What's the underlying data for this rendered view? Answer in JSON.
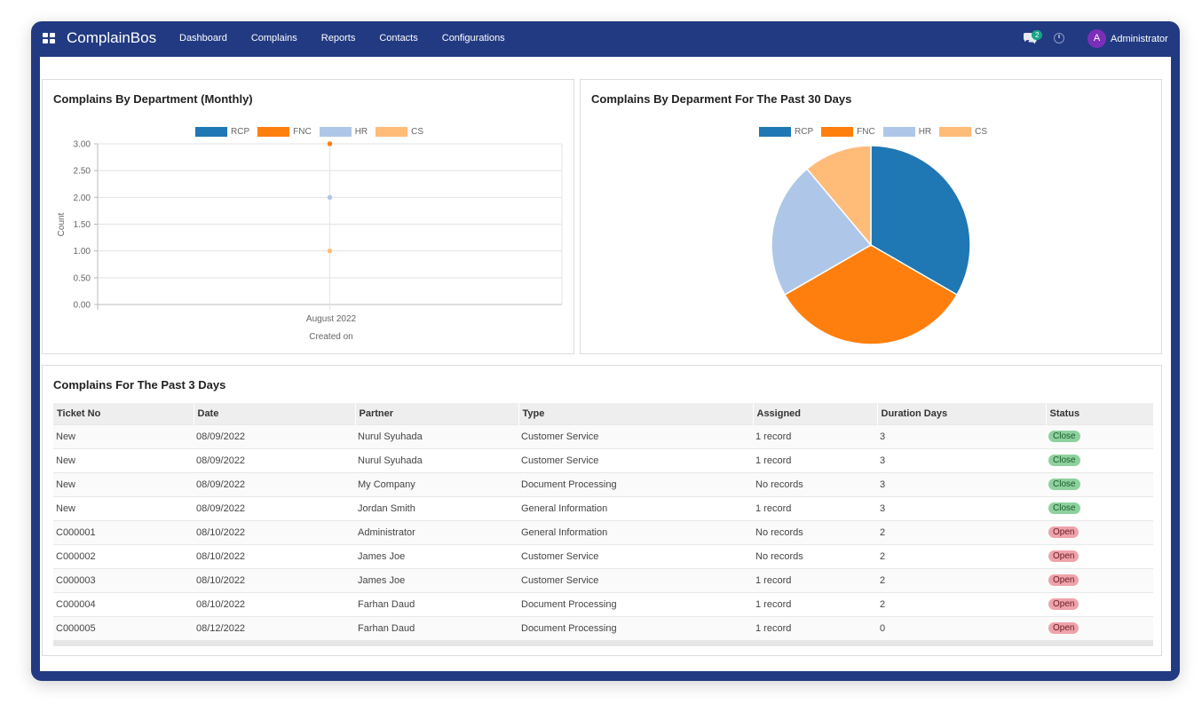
{
  "nav": {
    "brand": "ComplainBos",
    "menu": [
      "Dashboard",
      "Complains",
      "Reports",
      "Contacts",
      "Configurations"
    ],
    "chat_count": "2",
    "avatar_letter": "A",
    "user_name": "Administrator"
  },
  "panels": {
    "monthly_title": "Complains By Department (Monthly)",
    "pie_title": "Complains By Deparment For The Past 30 Days",
    "table_title": "Complains For The Past 3 Days"
  },
  "colors": {
    "RCP": "#1f77b4",
    "FNC": "#ff7f0e",
    "HR": "#aec7e8",
    "CS": "#ffbb78"
  },
  "chart_data": [
    {
      "type": "line",
      "title": "Complains By Department (Monthly)",
      "xlabel": "Created on",
      "ylabel": "Count",
      "categories": [
        "August 2022"
      ],
      "ylim": [
        0,
        3
      ],
      "yticks": [
        "3.00",
        "2.50",
        "2.00",
        "1.50",
        "1.00",
        "0.50",
        "0.00"
      ],
      "series": [
        {
          "name": "RCP",
          "values": [
            3
          ]
        },
        {
          "name": "FNC",
          "values": [
            3
          ]
        },
        {
          "name": "HR",
          "values": [
            2
          ]
        },
        {
          "name": "CS",
          "values": [
            1
          ]
        }
      ],
      "legend": "top"
    },
    {
      "type": "pie",
      "title": "Complains By Deparment For The Past 30 Days",
      "categories": [
        "RCP",
        "FNC",
        "HR",
        "CS"
      ],
      "values": [
        3,
        3,
        2,
        1
      ],
      "legend": "top"
    }
  ],
  "table": {
    "headers": [
      "Ticket No",
      "Date",
      "Partner",
      "Type",
      "Assigned",
      "Duration Days",
      "Status"
    ],
    "rows": [
      [
        "New",
        "08/09/2022",
        "Nurul Syuhada",
        "Customer Service",
        "1 record",
        "3",
        "Close"
      ],
      [
        "New",
        "08/09/2022",
        "Nurul Syuhada",
        "Customer Service",
        "1 record",
        "3",
        "Close"
      ],
      [
        "New",
        "08/09/2022",
        "My Company",
        "Document Processing",
        "No records",
        "3",
        "Close"
      ],
      [
        "New",
        "08/09/2022",
        "Jordan Smith",
        "General Information",
        "1 record",
        "3",
        "Close"
      ],
      [
        "C000001",
        "08/10/2022",
        "Administrator",
        "General Information",
        "No records",
        "2",
        "Open"
      ],
      [
        "C000002",
        "08/10/2022",
        "James Joe",
        "Customer Service",
        "No records",
        "2",
        "Open"
      ],
      [
        "C000003",
        "08/10/2022",
        "James Joe",
        "Customer Service",
        "1 record",
        "2",
        "Open"
      ],
      [
        "C000004",
        "08/10/2022",
        "Farhan Daud",
        "Document Processing",
        "1 record",
        "2",
        "Open"
      ],
      [
        "C000005",
        "08/12/2022",
        "Farhan Daud",
        "Document Processing",
        "1 record",
        "0",
        "Open"
      ]
    ]
  }
}
